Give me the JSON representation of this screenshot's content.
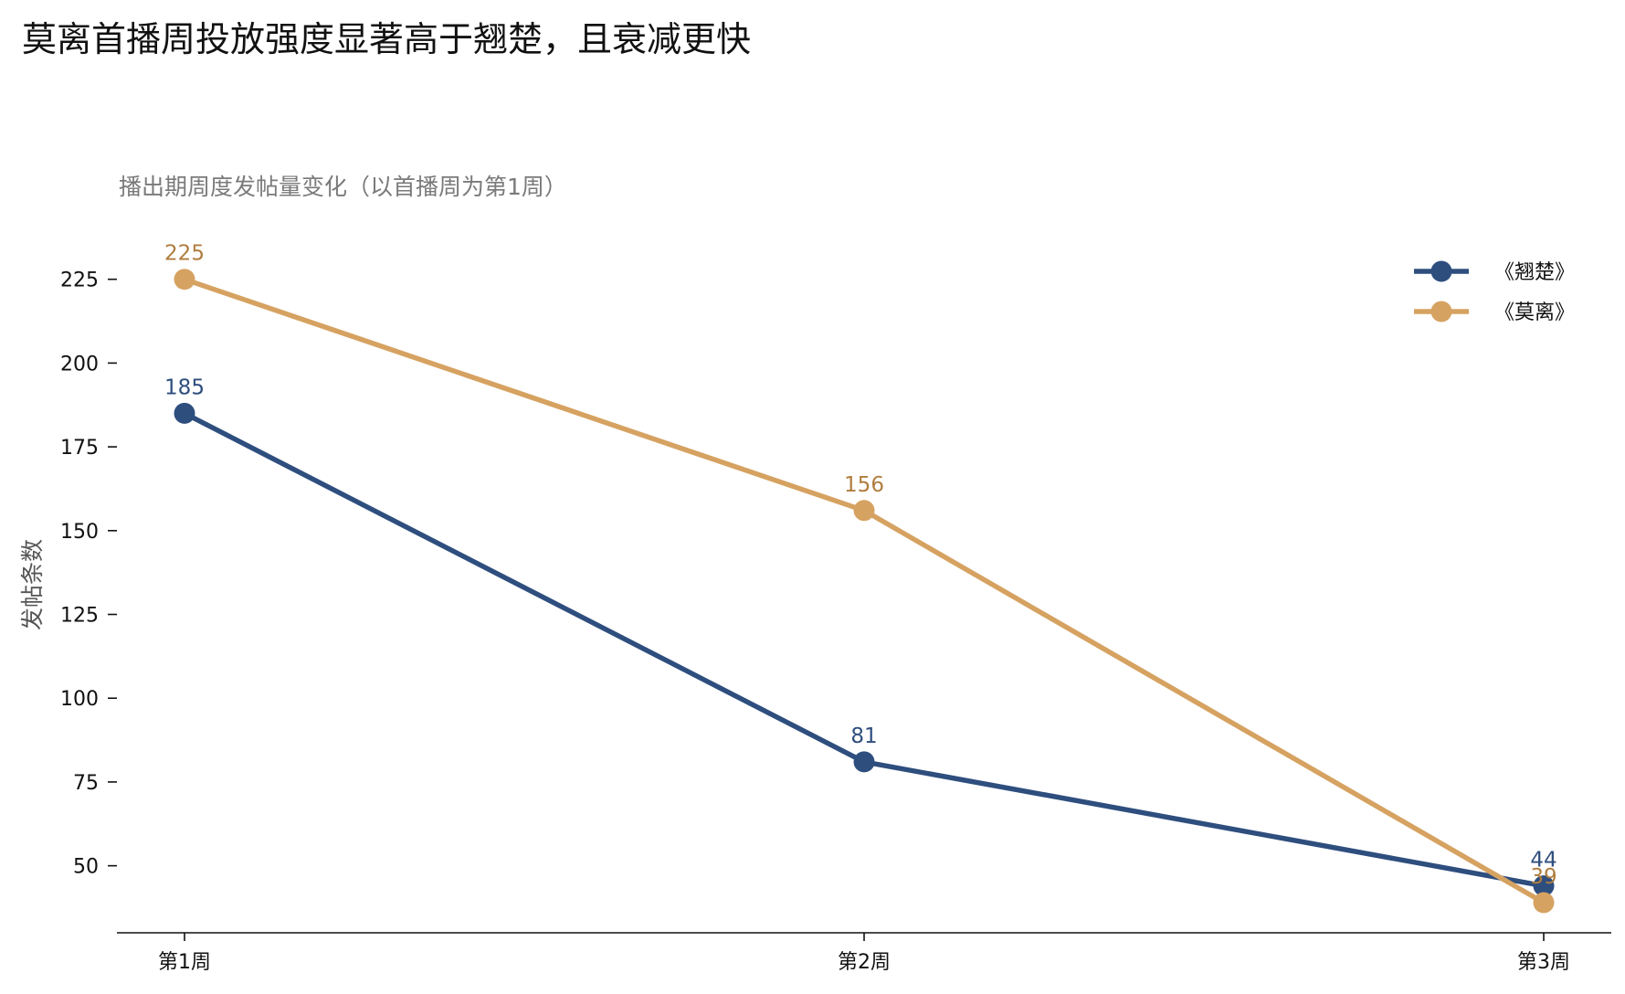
{
  "title": "莫离首播周投放强度显著高于翘楚，且衰减更快",
  "chart_data": {
    "type": "line",
    "subtitle": "播出期周度发帖量变化（以首播周为第1周）",
    "ylabel": "发帖条数",
    "xlabel": "",
    "categories": [
      "第1周",
      "第2周",
      "第3周"
    ],
    "ylim": [
      30,
      238
    ],
    "yticks": [
      50,
      75,
      100,
      125,
      150,
      175,
      200,
      225
    ],
    "grid": false,
    "legend_position": "top-right",
    "series": [
      {
        "name": "《翘楚》",
        "color": "#2e4e7e",
        "label_color": "#2e4e7e",
        "values": [
          185,
          81,
          44
        ]
      },
      {
        "name": "《莫离》",
        "color": "#d6a261",
        "label_color": "#b07d3e",
        "values": [
          225,
          156,
          39
        ]
      }
    ]
  }
}
